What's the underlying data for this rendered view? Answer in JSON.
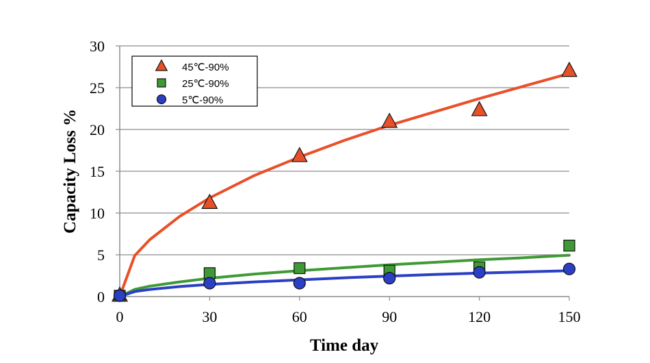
{
  "chart_data": {
    "type": "scatter",
    "title": "",
    "xlabel": "Time day",
    "ylabel": "Capacity Loss %",
    "xlim": [
      0,
      150
    ],
    "ylim": [
      0,
      30
    ],
    "xticks": [
      0,
      30,
      60,
      90,
      120,
      150
    ],
    "yticks": [
      0,
      5,
      10,
      15,
      20,
      25,
      30
    ],
    "grid": "horizontal",
    "legend_position": "top-left",
    "series": [
      {
        "name": "45℃-90%",
        "marker": "triangle",
        "color": "#e8502a",
        "points": {
          "x": [
            0,
            30,
            60,
            90,
            120,
            150
          ],
          "y": [
            0.1,
            11.2,
            16.8,
            20.9,
            22.3,
            27.0
          ]
        },
        "fit": {
          "x": [
            0,
            5,
            10,
            20,
            30,
            45,
            60,
            75,
            90,
            105,
            120,
            135,
            150
          ],
          "y": [
            0,
            4.9,
            6.8,
            9.6,
            11.8,
            14.5,
            16.7,
            18.7,
            20.5,
            22.1,
            23.7,
            25.2,
            26.7
          ]
        }
      },
      {
        "name": "25℃-90%",
        "marker": "square",
        "color": "#3f9a36",
        "points": {
          "x": [
            0,
            30,
            60,
            90,
            120,
            150
          ],
          "y": [
            0.1,
            2.8,
            3.4,
            3.1,
            3.5,
            6.1
          ]
        },
        "fit": {
          "x": [
            0,
            5,
            10,
            20,
            30,
            45,
            60,
            75,
            90,
            105,
            120,
            135,
            150
          ],
          "y": [
            0,
            0.85,
            1.25,
            1.75,
            2.2,
            2.7,
            3.1,
            3.45,
            3.8,
            4.1,
            4.4,
            4.65,
            4.95
          ]
        }
      },
      {
        "name": "5℃-90%",
        "marker": "circle",
        "color": "#2a3fc4",
        "points": {
          "x": [
            0,
            30,
            60,
            90,
            120,
            150
          ],
          "y": [
            0.1,
            1.6,
            1.6,
            2.2,
            2.9,
            3.3
          ]
        },
        "fit": {
          "x": [
            0,
            5,
            10,
            20,
            30,
            45,
            60,
            75,
            90,
            105,
            120,
            135,
            150
          ],
          "y": [
            0,
            0.6,
            0.85,
            1.2,
            1.45,
            1.75,
            2.0,
            2.25,
            2.45,
            2.65,
            2.8,
            2.95,
            3.1
          ]
        }
      }
    ]
  }
}
